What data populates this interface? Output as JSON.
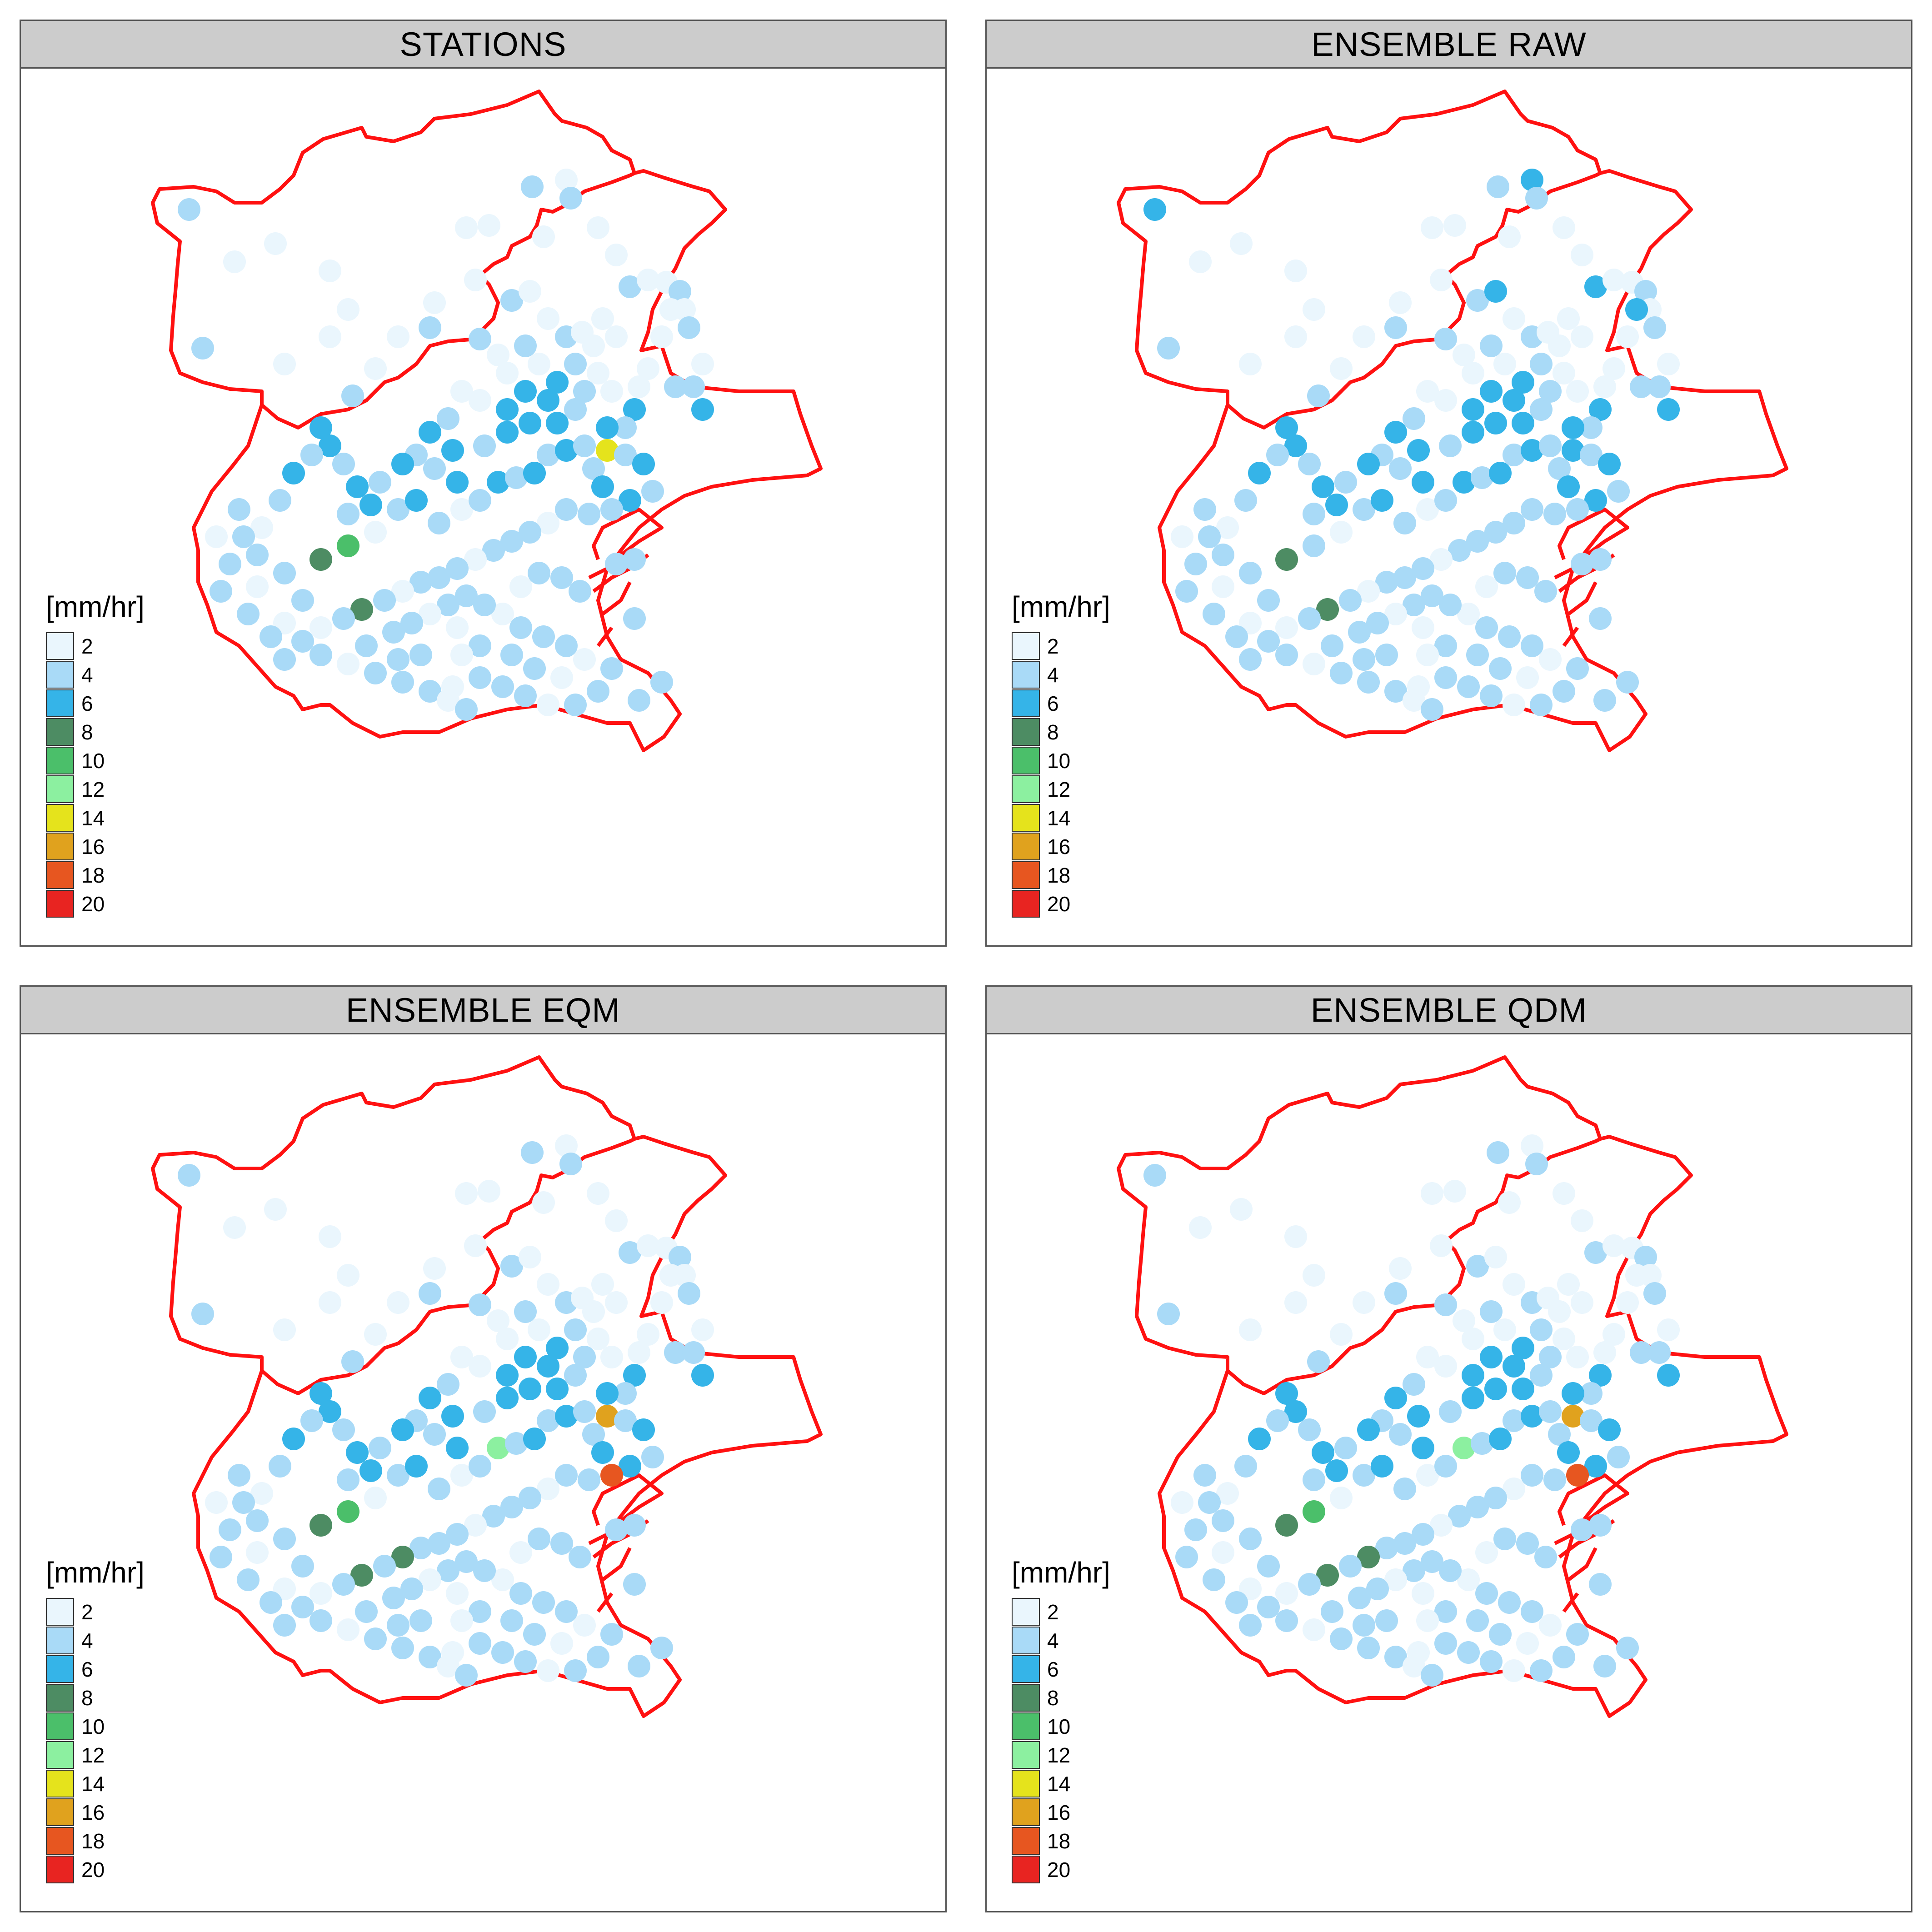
{
  "legend": {
    "title": "[mm/hr]",
    "classes": [
      {
        "label": "2",
        "color": "#eaf6fd"
      },
      {
        "label": "4",
        "color": "#a9daf7"
      },
      {
        "label": "6",
        "color": "#35b4e8"
      },
      {
        "label": "8",
        "color": "#4d8c63"
      },
      {
        "label": "10",
        "color": "#4bbf6a"
      },
      {
        "label": "12",
        "color": "#8cf0a0"
      },
      {
        "label": "14",
        "color": "#e5e31c"
      },
      {
        "label": "16",
        "color": "#e0a21e"
      },
      {
        "label": "18",
        "color": "#e75620"
      },
      {
        "label": "20",
        "color": "#e82421"
      }
    ]
  },
  "boundary_color": "#ff1111",
  "panels": [
    {
      "title": "STATIONS"
    },
    {
      "title": "ENSEMBLE RAW"
    },
    {
      "title": "ENSEMBLE EQM"
    },
    {
      "title": "ENSEMBLE QDM"
    }
  ]
}
